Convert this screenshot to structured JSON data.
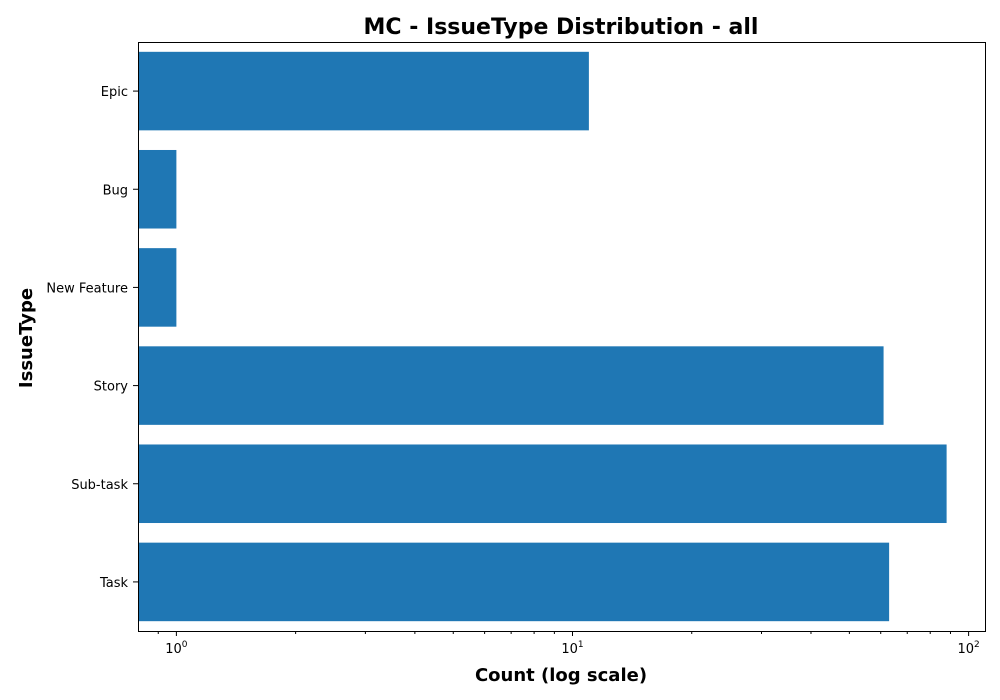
{
  "chart_data": {
    "type": "bar",
    "orientation": "horizontal",
    "title": "MC - IssueType Distribution - all",
    "xlabel": "Count (log scale)",
    "ylabel": "IssueType",
    "x_scale": "log",
    "xlim": [
      0.8,
      110
    ],
    "x_ticks": [
      {
        "value": 1,
        "base": "10",
        "exp": "0"
      },
      {
        "value": 10,
        "base": "10",
        "exp": "1"
      },
      {
        "value": 100,
        "base": "10",
        "exp": "2"
      }
    ],
    "categories": [
      "Epic",
      "Bug",
      "New Feature",
      "Story",
      "Sub-task",
      "Task"
    ],
    "values": [
      11,
      1,
      1,
      61,
      88,
      63
    ],
    "bar_color": "#1f77b4",
    "grid": false,
    "legend": false
  }
}
